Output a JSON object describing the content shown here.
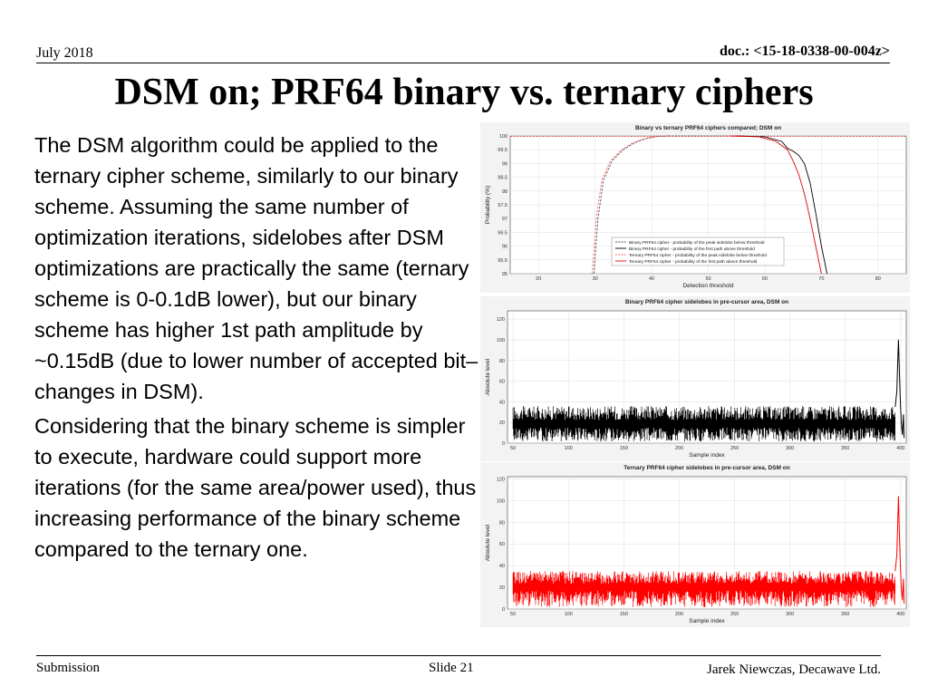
{
  "header": {
    "date": "July 2018",
    "doc": "doc.: <15-18-0338-00-004z>"
  },
  "title": "DSM on; PRF64 binary vs. ternary ciphers",
  "body": {
    "paragraphs": [
      "The DSM algorithm could be applied to the ternary cipher scheme, similarly to our binary scheme. Assuming the same number of optimization iterations, sidelobes after DSM optimizations are practically the same (ternary scheme is 0-0.1dB lower), but our binary scheme has higher 1st path amplitude by ~0.15dB (due to lower number of accepted bit–changes in DSM).",
      "Considering that the binary scheme is simpler to execute, hardware could support more iterations (for the same area/power used), thus increasing performance of the binary scheme compared to the ternary one."
    ]
  },
  "footer": {
    "left": "Submission",
    "center": "Slide 21",
    "right": "Jarek Niewczas,  Decawave Ltd."
  },
  "chart_data": [
    {
      "type": "line",
      "title": "Binary vs ternary PRF64 ciphers compared; DSM on",
      "xlabel": "Detection threshold",
      "ylabel": "Probability (%)",
      "xlim": [
        15,
        85
      ],
      "ylim": [
        95,
        100
      ],
      "xticks": [
        20,
        30,
        40,
        50,
        60,
        70,
        80
      ],
      "yticks": [
        95,
        95.5,
        96,
        96.5,
        97,
        97.5,
        98,
        98.5,
        99,
        99.5,
        100
      ],
      "grid": true,
      "legend": "bottom-right",
      "series": [
        {
          "name": "Binary PRF64 cipher - probability of the peak sidelobe below threshold",
          "color": "#555555",
          "dash": true,
          "x": [
            29.8,
            30.5,
            31.5,
            33,
            35,
            37,
            39,
            41,
            43
          ],
          "y": [
            95,
            97,
            98.4,
            99.1,
            99.5,
            99.75,
            99.9,
            99.98,
            100
          ]
        },
        {
          "name": "Binary PRF64 cipher - probability of the first path above threshold",
          "color": "#000000",
          "dash": false,
          "x": [
            55,
            60,
            63,
            64,
            65,
            66,
            67,
            68,
            69,
            70,
            71
          ],
          "y": [
            100,
            99.97,
            99.8,
            99.55,
            99.45,
            99.3,
            99.0,
            98.3,
            97.2,
            96,
            95
          ]
        },
        {
          "name": "Ternary PRF64 cipher - probability of the peak sidelobe below threshold",
          "color": "#ff6666",
          "dash": true,
          "x": [
            29.5,
            30.2,
            31.2,
            32.7,
            34.7,
            36.7,
            38.7,
            40.7,
            42.7
          ],
          "y": [
            95,
            97,
            98.4,
            99.1,
            99.5,
            99.75,
            99.9,
            99.98,
            100
          ]
        },
        {
          "name": "Ternary PRF64 cipher - probability of the first path above threshold",
          "color": "#e00000",
          "dash": false,
          "x": [
            54,
            59,
            62,
            64,
            65,
            66,
            67,
            68,
            69,
            70
          ],
          "y": [
            100,
            99.97,
            99.8,
            99.5,
            99.1,
            98.6,
            97.9,
            97.0,
            96.0,
            95
          ]
        }
      ]
    },
    {
      "type": "line",
      "title": "Binary PRF64 cipher sidelobes in pre-cursor area, DSM on",
      "xlabel": "Sample index",
      "ylabel": "Absolute level",
      "xlim": [
        45,
        405
      ],
      "ylim": [
        0,
        128
      ],
      "xticks": [
        50,
        100,
        150,
        200,
        250,
        300,
        350,
        400
      ],
      "yticks": [
        0,
        20,
        40,
        60,
        80,
        100,
        120
      ],
      "grid": true,
      "color": "#000000",
      "noise_band": [
        15,
        36
      ],
      "peak": {
        "x": 398,
        "y": 100
      }
    },
    {
      "type": "line",
      "title": "Ternary PRF64 cipher sidelobes in pre-cursor area, DSM on",
      "xlabel": "Sample index",
      "ylabel": "Absolute level",
      "xlim": [
        45,
        405
      ],
      "ylim": [
        0,
        122
      ],
      "xticks": [
        50,
        100,
        150,
        200,
        250,
        300,
        350,
        400
      ],
      "yticks": [
        0,
        20,
        40,
        60,
        80,
        100,
        120
      ],
      "grid": true,
      "color": "#ff0000",
      "noise_band": [
        17,
        35
      ],
      "peak": {
        "x": 398,
        "y": 104
      }
    }
  ]
}
